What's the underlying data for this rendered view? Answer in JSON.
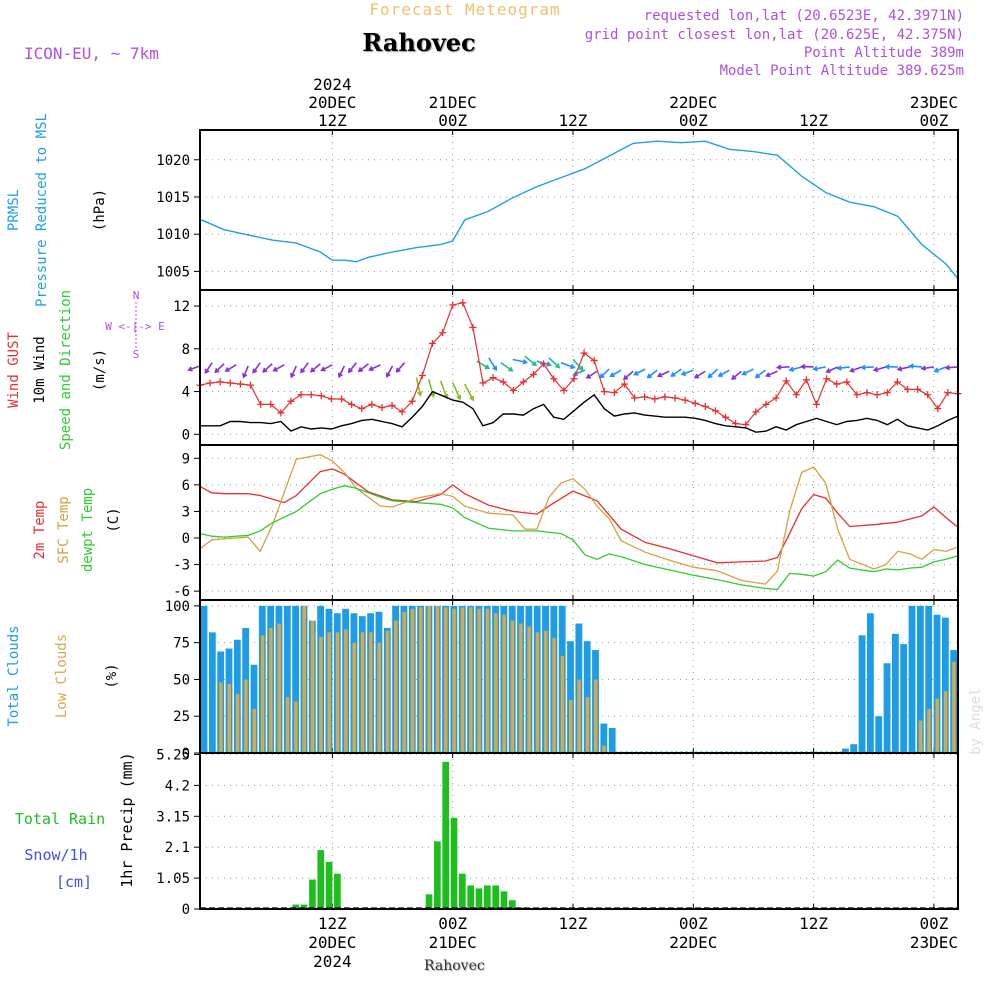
{
  "header": {
    "top_title": "Forecast Meteogram",
    "location": "Rahovec",
    "model": "ICON-EU, ~ 7km",
    "requested": "requested lon,lat (20.6523E, 42.3971N)",
    "grid_point": "grid point closest lon,lat (20.625E, 42.375N)",
    "point_altitude": "Point Altitude 389m",
    "model_altitude": "Model Point Altitude 389.625m",
    "bottom_label": "Rahovec",
    "watermark": "by Angel"
  },
  "time_axis": {
    "start_hour": 1,
    "end_hour": 64,
    "top_labels": [
      {
        "hour": 12,
        "lines": [
          "2024",
          "20DEC",
          "12Z"
        ]
      },
      {
        "hour": 22,
        "lines": [
          "21DEC",
          "00Z"
        ]
      },
      {
        "hour": 32,
        "lines": [
          "12Z"
        ]
      },
      {
        "hour": 42,
        "lines": [
          "22DEC",
          "00Z"
        ]
      },
      {
        "hour": 52,
        "lines": [
          "12Z"
        ]
      },
      {
        "hour": 62,
        "lines": [
          "23DEC",
          "00Z"
        ]
      }
    ],
    "bottom_labels": [
      {
        "hour": 12,
        "lines": [
          "12Z",
          "20DEC",
          "2024"
        ]
      },
      {
        "hour": 22,
        "lines": [
          "00Z",
          "21DEC"
        ]
      },
      {
        "hour": 32,
        "lines": [
          "12Z"
        ]
      },
      {
        "hour": 42,
        "lines": [
          "00Z",
          "22DEC"
        ]
      },
      {
        "hour": 52,
        "lines": [
          "12Z"
        ]
      },
      {
        "hour": 62,
        "lines": [
          "00Z",
          "23DEC"
        ]
      }
    ]
  },
  "chart_data": [
    {
      "type": "line",
      "id": "pressure",
      "labels": {
        "a": "PRMSL",
        "b": "Pressure Reduced to MSL",
        "unit": "(hPa)"
      },
      "ylim": [
        1002.5,
        1024
      ],
      "yticks": [
        1005,
        1010,
        1015,
        1020
      ],
      "grid": true,
      "series": [
        {
          "name": "PRMSL",
          "color": "#1ea0e6",
          "x": [
            1,
            3,
            5,
            7,
            9,
            11,
            12,
            13,
            14,
            15,
            17,
            19,
            21,
            22,
            23,
            25,
            27,
            29,
            31,
            33,
            35,
            37,
            39,
            41,
            43,
            45,
            47,
            49,
            51,
            53,
            55,
            57,
            59,
            61,
            63,
            64
          ],
          "y": [
            1012,
            1010.6,
            1009.9,
            1009.2,
            1008.8,
            1007.6,
            1006.5,
            1006.5,
            1006.3,
            1006.9,
            1007.6,
            1008.2,
            1008.6,
            1009.1,
            1011.9,
            1013.1,
            1014.9,
            1016.4,
            1017.6,
            1018.8,
            1020.5,
            1022.2,
            1022.5,
            1022.3,
            1022.5,
            1021.4,
            1021.1,
            1020.6,
            1017.8,
            1015.6,
            1014.3,
            1013.7,
            1012.4,
            1008.6,
            1006.0,
            1004.0
          ]
        }
      ]
    },
    {
      "type": "line",
      "id": "wind",
      "labels": {
        "a": "Wind GUST",
        "b": "10m Wind",
        "c": "Speed and Direction",
        "unit": "(m/s)",
        "compass": [
          "N",
          "W <-|-> E",
          "S"
        ]
      },
      "ylim": [
        -1,
        13.5
      ],
      "yticks": [
        0,
        4,
        8,
        12
      ],
      "grid": true,
      "series": [
        {
          "name": "Wind GUST",
          "color": "#e83030",
          "y": [
            4.6,
            4.8,
            4.9,
            4.8,
            4.7,
            4.6,
            2.8,
            2.8,
            2.0,
            3.1,
            3.7,
            3.7,
            3.6,
            3.3,
            3.3,
            2.8,
            2.4,
            2.8,
            2.5,
            2.7,
            2.1,
            3.1,
            5.5,
            8.5,
            9.5,
            12.1,
            12.3,
            10.0,
            4.8,
            5.3,
            4.9,
            4.1,
            4.9,
            5.6,
            6.6,
            5.2,
            4.1,
            5.2,
            7.6,
            6.9,
            4.0,
            3.9,
            4.7,
            3.4,
            3.5,
            3.3,
            3.5,
            3.4,
            3.2,
            2.9,
            2.6,
            2.2,
            1.6,
            1.0,
            0.9,
            2.1,
            2.8,
            3.4,
            5.0,
            3.7,
            5.1,
            2.8,
            5.2,
            4.7,
            4.9,
            3.7,
            3.9,
            3.7,
            3.9,
            4.9,
            4.2,
            4.2,
            3.7,
            2.4,
            3.9,
            3.8
          ]
        },
        {
          "name": "10m Wind",
          "color": "#000000",
          "y": [
            0.8,
            0.8,
            0.8,
            1.2,
            1.2,
            1.1,
            1.1,
            1.0,
            1.2,
            0.3,
            0.7,
            0.5,
            0.6,
            0.5,
            0.8,
            1.0,
            1.3,
            1.4,
            1.2,
            1.0,
            0.7,
            1.6,
            2.6,
            4.0,
            3.6,
            3.2,
            3.0,
            2.4,
            0.8,
            1.1,
            1.9,
            1.9,
            1.8,
            2.4,
            2.8,
            1.6,
            1.4,
            2.2,
            3.0,
            3.7,
            2.4,
            1.7,
            1.9,
            2.0,
            1.8,
            1.7,
            1.6,
            1.6,
            1.6,
            1.5,
            1.3,
            1.0,
            0.8,
            0.7,
            0.6,
            0.2,
            0.3,
            0.7,
            0.4,
            0.9,
            1.2,
            1.5,
            1.2,
            0.9,
            1.2,
            1.3,
            1.5,
            1.3,
            0.9,
            1.4,
            0.8,
            0.6,
            0.4,
            0.8,
            1.3,
            1.7
          ]
        }
      ]
    },
    {
      "type": "line",
      "id": "temperature",
      "labels": {
        "a": "2m Temp",
        "b": "SFC Temp",
        "c": "dewpt Temp",
        "unit": "(C)"
      },
      "ylim": [
        -7,
        10.5
      ],
      "yticks": [
        -6,
        -3,
        0,
        3,
        6,
        9
      ],
      "grid": true,
      "series": [
        {
          "name": "2m Temp",
          "color": "#e83030",
          "x": [
            1,
            2,
            3,
            5,
            6,
            8,
            9,
            11,
            12,
            13,
            15,
            17,
            19,
            21,
            22,
            23,
            25,
            27,
            29,
            30,
            32,
            34,
            36,
            38,
            40,
            42,
            44,
            46,
            48,
            49,
            50,
            51,
            52,
            53,
            54,
            55,
            57,
            59,
            61,
            62,
            63,
            64
          ],
          "y": [
            5.8,
            5.1,
            5.0,
            5.0,
            4.8,
            4.0,
            4.8,
            7.5,
            7.8,
            7.2,
            5.2,
            4.3,
            4.1,
            4.9,
            6.0,
            5.0,
            3.7,
            3.0,
            2.7,
            3.6,
            5.3,
            4.2,
            1.0,
            -0.5,
            -1.2,
            -2.0,
            -2.8,
            -2.7,
            -2.6,
            -2.2,
            0.5,
            3.3,
            4.9,
            4.5,
            2.8,
            1.3,
            1.5,
            1.8,
            2.5,
            3.5,
            2.3,
            1.2
          ]
        },
        {
          "name": "SFC Temp",
          "color": "#d8a040",
          "x": [
            1,
            2,
            3,
            5,
            6,
            7,
            9,
            11,
            12,
            13,
            14,
            16,
            17,
            18,
            19,
            21,
            22,
            23,
            25,
            27,
            28,
            29,
            30,
            31,
            32,
            33,
            34,
            35,
            36,
            38,
            40,
            42,
            44,
            46,
            48,
            49,
            50,
            51,
            52,
            53,
            54,
            55,
            57,
            58,
            59,
            60,
            61,
            62,
            63,
            64
          ],
          "y": [
            -1.2,
            -0.2,
            -0.1,
            0.1,
            -1.5,
            1.4,
            8.9,
            9.4,
            8.7,
            7.4,
            5.6,
            3.6,
            3.5,
            4.0,
            4.5,
            5.0,
            4.7,
            3.6,
            2.8,
            2.6,
            1.0,
            1.0,
            4.6,
            6.2,
            6.7,
            5.5,
            3.6,
            2.2,
            -0.3,
            -1.6,
            -2.5,
            -3.3,
            -3.7,
            -4.8,
            -5.2,
            -3.7,
            3.0,
            7.4,
            8.0,
            6.2,
            1.0,
            -2.4,
            -3.5,
            -3.0,
            -1.5,
            -1.8,
            -2.4,
            -1.3,
            -1.5,
            -1.0
          ]
        },
        {
          "name": "dewpt Temp",
          "color": "#30cc30",
          "x": [
            1,
            2,
            3,
            5,
            6,
            7,
            9,
            11,
            12,
            13,
            14,
            16,
            17,
            19,
            21,
            22,
            23,
            25,
            27,
            29,
            31,
            32,
            33,
            34,
            35,
            36,
            38,
            40,
            42,
            44,
            46,
            48,
            49,
            50,
            51,
            52,
            53,
            54,
            55,
            57,
            58,
            59,
            60,
            61,
            62,
            63,
            64
          ],
          "y": [
            0.5,
            0.2,
            0.1,
            0.3,
            0.8,
            1.7,
            3.0,
            5.0,
            5.5,
            5.9,
            5.6,
            4.6,
            4.2,
            4.0,
            3.8,
            3.4,
            2.3,
            1.1,
            0.8,
            0.8,
            0.5,
            -0.2,
            -1.9,
            -2.4,
            -1.8,
            -2.1,
            -3.0,
            -3.6,
            -4.2,
            -4.7,
            -5.3,
            -5.7,
            -5.8,
            -4.0,
            -4.1,
            -4.3,
            -3.8,
            -2.5,
            -3.4,
            -3.8,
            -3.5,
            -3.6,
            -3.4,
            -3.3,
            -2.7,
            -2.4,
            -2.0
          ]
        }
      ]
    },
    {
      "type": "bar",
      "id": "clouds",
      "labels": {
        "a": "Total Clouds",
        "b": "Low Clouds",
        "unit": "(%)"
      },
      "ylim": [
        0,
        104
      ],
      "yticks": [
        0,
        25,
        50,
        75,
        100
      ],
      "grid": true,
      "series": [
        {
          "name": "Total Clouds",
          "color": "#1e9ce6",
          "values": [
            100,
            82,
            69,
            71,
            77,
            85,
            60,
            100,
            100,
            100,
            100,
            100,
            100,
            90,
            100,
            98,
            95,
            98,
            95,
            93,
            95,
            96,
            85,
            100,
            100,
            100,
            100,
            100,
            100,
            100,
            100,
            100,
            100,
            100,
            100,
            100,
            100,
            100,
            100,
            100,
            100,
            100,
            100,
            100,
            76,
            88,
            76,
            70,
            20,
            17,
            0,
            0,
            0,
            0,
            0,
            0,
            0,
            0,
            0,
            0,
            0,
            0,
            0,
            0,
            0,
            0,
            0,
            0,
            0,
            0,
            0,
            0,
            0,
            0,
            0,
            0,
            0,
            3,
            6,
            80,
            95,
            25,
            61,
            81,
            74,
            100,
            100,
            100,
            94,
            92,
            70
          ]
        },
        {
          "name": "Low Clouds",
          "color": "#d8a84a",
          "values": [
            0,
            0,
            48,
            47,
            40,
            50,
            30,
            80,
            85,
            88,
            38,
            35,
            100,
            90,
            79,
            82,
            82,
            84,
            75,
            82,
            82,
            75,
            83,
            90,
            96,
            98,
            99,
            100,
            100,
            99,
            98,
            99,
            99,
            98,
            98,
            95,
            94,
            90,
            88,
            86,
            82,
            83,
            78,
            66,
            36,
            50,
            38,
            50,
            5,
            0,
            0,
            0,
            0,
            0,
            0,
            0,
            0,
            0,
            0,
            0,
            0,
            0,
            0,
            0,
            0,
            0,
            0,
            0,
            0,
            0,
            0,
            0,
            0,
            0,
            0,
            0,
            0,
            0,
            0,
            0,
            0,
            0,
            0,
            0,
            0,
            0,
            22,
            30,
            37,
            42,
            62
          ]
        }
      ]
    },
    {
      "type": "bar",
      "id": "precip",
      "labels": {
        "a": "Total Rain",
        "b": "Snow/1h",
        "c": "[cm]",
        "unit": "1hr Precip (mm)"
      },
      "ylim": [
        0,
        5.3
      ],
      "yticks": [
        0,
        1.05,
        2.1,
        3.15,
        4.2,
        5.25
      ],
      "grid": true,
      "series": [
        {
          "name": "Total Rain",
          "color": "#1cc01c",
          "values": [
            0,
            0,
            0,
            0,
            0,
            0,
            0,
            0,
            0,
            0,
            0,
            0.15,
            0.15,
            1.0,
            2.0,
            1.6,
            1.2,
            0,
            0,
            0,
            0,
            0,
            0,
            0,
            0,
            0,
            0,
            0.5,
            2.3,
            5.0,
            3.1,
            1.2,
            0.8,
            0.7,
            0.8,
            0.8,
            0.6,
            0.3,
            0.05,
            0,
            0,
            0,
            0,
            0,
            0,
            0,
            0,
            0,
            0,
            0,
            0,
            0,
            0,
            0,
            0,
            0,
            0,
            0,
            0,
            0,
            0,
            0,
            0,
            0,
            0,
            0,
            0,
            0,
            0,
            0,
            0,
            0,
            0,
            0,
            0,
            0,
            0,
            0,
            0,
            0,
            0,
            0,
            0,
            0,
            0,
            0,
            0,
            0,
            0,
            0.05,
            0.05
          ]
        }
      ]
    }
  ],
  "colors": {
    "frame": "#000000",
    "grid": "#999999",
    "pressure": "#1ea0e6",
    "magenta": "#b050e0",
    "barb_a": "#8a30d8",
    "barb_b": "#1e90ff",
    "barb_c": "#20c080"
  }
}
